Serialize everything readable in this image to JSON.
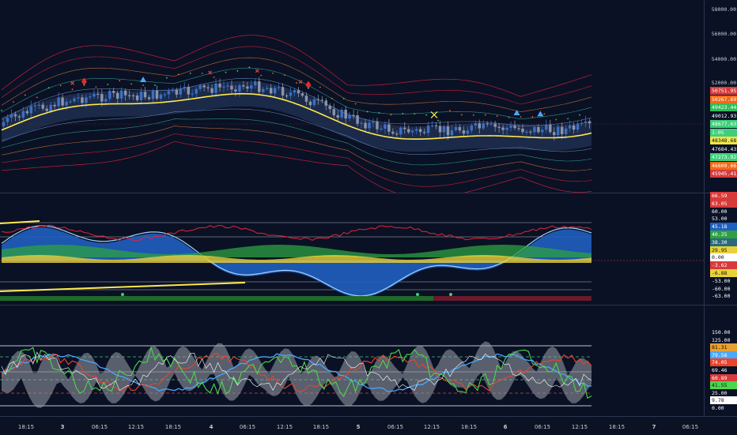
{
  "colors": {
    "background": "#0a1124",
    "grid": "#2a3550",
    "bull_candle": "#3a6fc4",
    "bear_candle": "#8a93a8",
    "basis_line": "#ffe94d",
    "band_outer": "#c0203a",
    "band_inner": "#2f8f86",
    "osc_blue": "#1f5fbf",
    "osc_green": "#2ea043",
    "osc_yellow": "#e8d23a",
    "rsi_red": "#e8452c",
    "rsi_green": "#4cd64c",
    "rsi_blue": "#4aa8ff",
    "rsi_fill": "#9aa0aa"
  },
  "price_axis": {
    "ticks": [
      "58000.00",
      "56000.00",
      "54000.00",
      "52000.00"
    ],
    "badges": [
      {
        "text": "50751.95",
        "bg": "#d83a3a",
        "fg": "#ffffff"
      },
      {
        "text": "50267.69",
        "bg": "#f06a1a",
        "fg": "#ffffff"
      },
      {
        "text": "49423.44",
        "bg": "#2fbf5a",
        "fg": "#ffffff"
      },
      {
        "text": "49012.93",
        "bg": "#0a1124",
        "fg": "#ffffff"
      },
      {
        "text": "48677.63",
        "bg": "#3fcf7a",
        "fg": "#ffffff"
      },
      {
        "text": "1:05",
        "bg": "#3fcf7a",
        "fg": "#ffffff"
      },
      {
        "text": "48348.68",
        "bg": "#f0e44a",
        "fg": "#111111"
      },
      {
        "text": "47684.43",
        "bg": "#0a1124",
        "fg": "#ffffff"
      },
      {
        "text": "47273.92",
        "bg": "#3fcf7a",
        "fg": "#ffffff"
      },
      {
        "text": "46609.66",
        "bg": "#f06a1a",
        "fg": "#ffffff"
      },
      {
        "text": "45945.41",
        "bg": "#d83a3a",
        "fg": "#ffffff"
      }
    ]
  },
  "osc_axis": {
    "badges": [
      {
        "text": "66.59",
        "bg": "#d83a3a",
        "fg": "#ffffff"
      },
      {
        "text": "63.05",
        "bg": "#d83a3a",
        "fg": "#ffffff"
      },
      {
        "text": "60.00",
        "bg": "#0a1124",
        "fg": "#ffffff"
      },
      {
        "text": "53.00",
        "bg": "#0a1124",
        "fg": "#ffffff"
      },
      {
        "text": "45.18",
        "bg": "#1f5fbf",
        "fg": "#ffffff"
      },
      {
        "text": "40.25",
        "bg": "#2ea043",
        "fg": "#ffffff"
      },
      {
        "text": "38.30",
        "bg": "#2a6a7a",
        "fg": "#ffffff"
      },
      {
        "text": "29.95",
        "bg": "#e8d23a",
        "fg": "#111111"
      },
      {
        "text": "0.00",
        "bg": "#ffffff",
        "fg": "#111111"
      },
      {
        "text": "-3.62",
        "bg": "#d83a3a",
        "fg": "#ffffff"
      },
      {
        "text": "-6.88",
        "bg": "#e8d23a",
        "fg": "#111111"
      },
      {
        "text": "-53.00",
        "bg": "#0a1124",
        "fg": "#ffffff"
      },
      {
        "text": "-60.00",
        "bg": "#0a1124",
        "fg": "#ffffff"
      },
      {
        "text": "-63.00",
        "bg": "#0a1124",
        "fg": "#ffffff"
      }
    ]
  },
  "rsi_axis": {
    "badges": [
      {
        "text": "150.00",
        "bg": "#0a1124",
        "fg": "#ffffff"
      },
      {
        "text": "125.00",
        "bg": "#0a1124",
        "fg": "#ffffff"
      },
      {
        "text": "81.31",
        "bg": "#e8a030",
        "fg": "#111111"
      },
      {
        "text": "79.58",
        "bg": "#4aa8ff",
        "fg": "#ffffff"
      },
      {
        "text": "74.05",
        "bg": "#e8452c",
        "fg": "#ffffff"
      },
      {
        "text": "69.46",
        "bg": "#0a1124",
        "fg": "#ffffff"
      },
      {
        "text": "60.89",
        "bg": "#d83a3a",
        "fg": "#ffffff"
      },
      {
        "text": "41.55",
        "bg": "#4cd64c",
        "fg": "#111111"
      },
      {
        "text": "25.00",
        "bg": "#0a1124",
        "fg": "#ffffff"
      },
      {
        "text": "9.78",
        "bg": "#ffffff",
        "fg": "#111111"
      },
      {
        "text": "0.00",
        "bg": "#0a1124",
        "fg": "#ffffff"
      }
    ]
  },
  "time_axis": [
    {
      "label": "18:15",
      "bold": false
    },
    {
      "label": "3",
      "bold": true
    },
    {
      "label": "06:15",
      "bold": false
    },
    {
      "label": "12:15",
      "bold": false
    },
    {
      "label": "18:15",
      "bold": false
    },
    {
      "label": "4",
      "bold": true
    },
    {
      "label": "06:15",
      "bold": false
    },
    {
      "label": "12:15",
      "bold": false
    },
    {
      "label": "18:15",
      "bold": false
    },
    {
      "label": "5",
      "bold": true
    },
    {
      "label": "06:15",
      "bold": false
    },
    {
      "label": "12:15",
      "bold": false
    },
    {
      "label": "18:15",
      "bold": false
    },
    {
      "label": "6",
      "bold": true
    },
    {
      "label": "06:15",
      "bold": false
    },
    {
      "label": "12:15",
      "bold": false
    },
    {
      "label": "18:15",
      "bold": false
    },
    {
      "label": "7",
      "bold": true
    },
    {
      "label": "06:15",
      "bold": false
    }
  ]
}
